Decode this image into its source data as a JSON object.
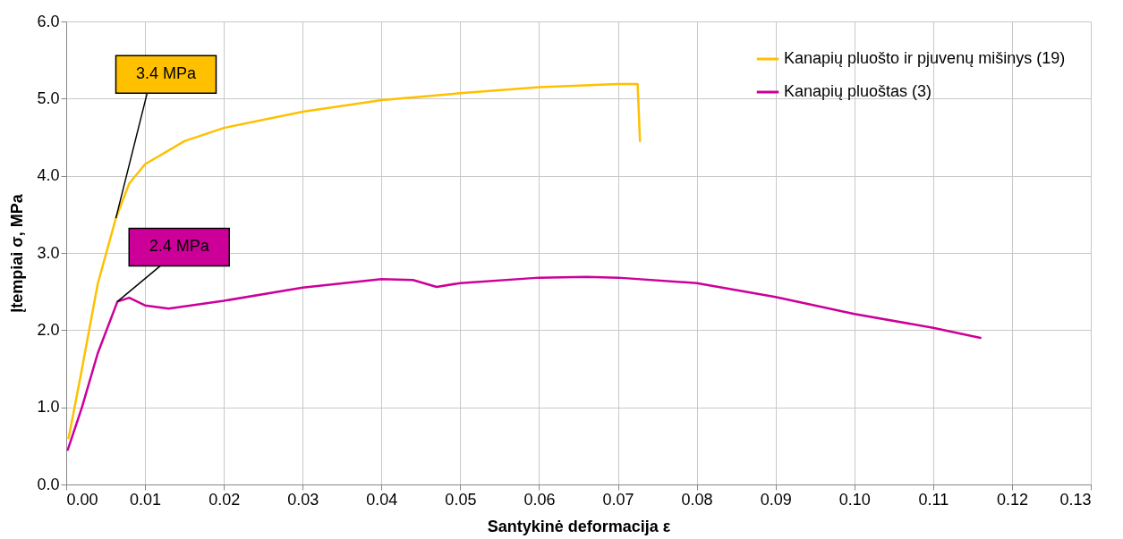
{
  "chart_data": {
    "type": "line",
    "xlabel": "Santykinė deformacija ε",
    "ylabel": "Įtempiai σ, MPa",
    "xlim": [
      0,
      0.13
    ],
    "ylim": [
      0,
      6
    ],
    "xticks": [
      {
        "value": 0,
        "label": "0.00"
      },
      {
        "value": 0.01,
        "label": "0.01"
      },
      {
        "value": 0.02,
        "label": "0.02"
      },
      {
        "value": 0.03,
        "label": "0.03"
      },
      {
        "value": 0.04,
        "label": "0.04"
      },
      {
        "value": 0.05,
        "label": "0.05"
      },
      {
        "value": 0.06,
        "label": "0.06"
      },
      {
        "value": 0.07,
        "label": "0.07"
      },
      {
        "value": 0.08,
        "label": "0.08"
      },
      {
        "value": 0.09,
        "label": "0.09"
      },
      {
        "value": 0.1,
        "label": "0.10"
      },
      {
        "value": 0.11,
        "label": "0.11"
      },
      {
        "value": 0.12,
        "label": "0.12"
      },
      {
        "value": 0.13,
        "label": "0.13"
      }
    ],
    "yticks": [
      {
        "value": 0,
        "label": "0.0"
      },
      {
        "value": 1,
        "label": "1.0"
      },
      {
        "value": 2,
        "label": "2.0"
      },
      {
        "value": 3,
        "label": "3.0"
      },
      {
        "value": 4,
        "label": "4.0"
      },
      {
        "value": 5,
        "label": "5.0"
      },
      {
        "value": 6,
        "label": "6.0"
      }
    ],
    "grid": true,
    "legend": "top right",
    "marker": "none",
    "line_style": "solid",
    "series": [
      {
        "name": "Kanapių pluošto ir pjuvenų mišinys (19)",
        "color": "#ffc000",
        "x": [
          0.0003,
          0.002,
          0.004,
          0.0063,
          0.008,
          0.01,
          0.015,
          0.02,
          0.03,
          0.04,
          0.05,
          0.06,
          0.07,
          0.0725,
          0.0728
        ],
        "values": [
          0.6,
          1.5,
          2.6,
          3.45,
          3.9,
          4.15,
          4.45,
          4.62,
          4.83,
          4.98,
          5.07,
          5.15,
          5.19,
          5.19,
          4.45
        ]
      },
      {
        "name": "Kanapių pluoštas (3)",
        "color": "#cc0099",
        "x": [
          0.0002,
          0.002,
          0.004,
          0.0065,
          0.008,
          0.01,
          0.013,
          0.02,
          0.03,
          0.04,
          0.044,
          0.047,
          0.05,
          0.06,
          0.066,
          0.07,
          0.08,
          0.09,
          0.1,
          0.11,
          0.116
        ],
        "values": [
          0.45,
          1.0,
          1.7,
          2.37,
          2.42,
          2.32,
          2.28,
          2.38,
          2.55,
          2.66,
          2.65,
          2.56,
          2.61,
          2.68,
          2.69,
          2.68,
          2.61,
          2.43,
          2.21,
          2.03,
          1.9
        ]
      }
    ],
    "annotations": [
      {
        "text": "3.4 MPa",
        "x": 0.0063,
        "y": 3.45
      },
      {
        "text": "2.4 MPa",
        "x": 0.0065,
        "y": 2.37
      }
    ]
  }
}
